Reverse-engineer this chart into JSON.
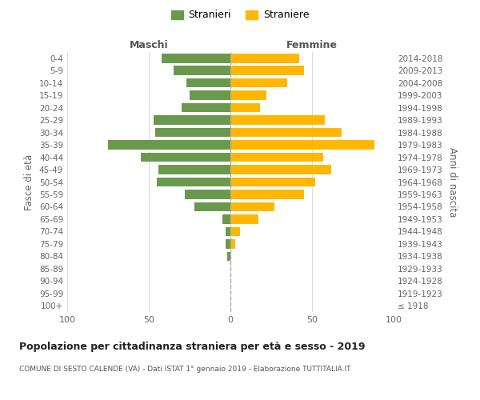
{
  "age_groups": [
    "100+",
    "95-99",
    "90-94",
    "85-89",
    "80-84",
    "75-79",
    "70-74",
    "65-69",
    "60-64",
    "55-59",
    "50-54",
    "45-49",
    "40-44",
    "35-39",
    "30-34",
    "25-29",
    "20-24",
    "15-19",
    "10-14",
    "5-9",
    "0-4"
  ],
  "birth_years": [
    "≤ 1918",
    "1919-1923",
    "1924-1928",
    "1929-1933",
    "1934-1938",
    "1939-1943",
    "1944-1948",
    "1949-1953",
    "1954-1958",
    "1959-1963",
    "1964-1968",
    "1969-1973",
    "1974-1978",
    "1979-1983",
    "1984-1988",
    "1989-1993",
    "1994-1998",
    "1999-2003",
    "2004-2008",
    "2009-2013",
    "2014-2018"
  ],
  "maschi": [
    0,
    0,
    0,
    0,
    2,
    3,
    3,
    5,
    22,
    28,
    45,
    44,
    55,
    75,
    46,
    47,
    30,
    25,
    27,
    35,
    42
  ],
  "femmine": [
    0,
    0,
    0,
    0,
    0,
    3,
    6,
    17,
    27,
    45,
    52,
    62,
    57,
    88,
    68,
    58,
    18,
    22,
    35,
    45,
    42
  ],
  "maschi_color": "#6a994e",
  "femmine_color": "#ffb703",
  "background_color": "#ffffff",
  "grid_color": "#cccccc",
  "title": "Popolazione per cittadinanza straniera per età e sesso - 2019",
  "subtitle": "COMUNE DI SESTO CALENDE (VA) - Dati ISTAT 1° gennaio 2019 - Elaborazione TUTTITALIA.IT",
  "ylabel_left": "Fasce di età",
  "ylabel_right": "Anni di nascita",
  "xlabel_left": "Maschi",
  "xlabel_right": "Femmine",
  "legend_maschi": "Stranieri",
  "legend_femmine": "Straniere",
  "xlim": 100
}
